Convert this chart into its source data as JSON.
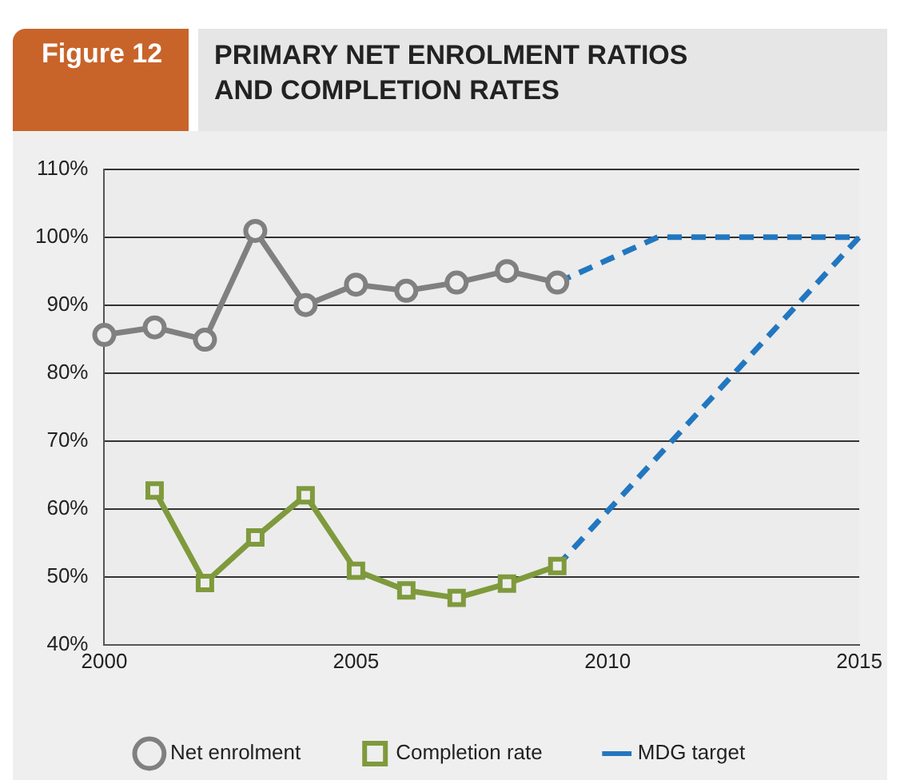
{
  "chart_data": {
    "type": "line",
    "subtitle": "Figure 12",
    "title": "PRIMARY NET ENROLMENT RATIOS AND COMPLETION RATES",
    "xlim": [
      2000,
      2015
    ],
    "xticks": [
      2000,
      2005,
      2010,
      2015
    ],
    "ylim": [
      40,
      110
    ],
    "yticks": [
      {
        "value": 40,
        "label": "40%"
      },
      {
        "value": 50,
        "label": "50%"
      },
      {
        "value": 60,
        "label": "60%"
      },
      {
        "value": 70,
        "label": "70%"
      },
      {
        "value": 80,
        "label": "80%"
      },
      {
        "value": 90,
        "label": "90%"
      },
      {
        "value": 100,
        "label": "100%"
      },
      {
        "value": 110,
        "label": "110%"
      }
    ],
    "grid": "y",
    "legend": "bottom",
    "series": [
      {
        "name": "Net enrolment",
        "color": "#808080",
        "marker": "circle",
        "x": [
          2000,
          2001,
          2002,
          2003,
          2004,
          2005,
          2006,
          2007,
          2008,
          2009
        ],
        "values": [
          85.6,
          86.7,
          84.9,
          100.9,
          90,
          93,
          92.1,
          93.3,
          95,
          93.3
        ]
      },
      {
        "name": "Completion rate",
        "color": "#7f9a3c",
        "marker": "square",
        "x": [
          2001,
          2002,
          2003,
          2004,
          2005,
          2006,
          2007,
          2008,
          2009
        ],
        "values": [
          62.7,
          49.1,
          55.8,
          62,
          50.9,
          48,
          46.9,
          49,
          51.6
        ]
      },
      {
        "name": "MDG target",
        "color": "#2277c0",
        "marker": "none",
        "line_style": "dashed",
        "x": [
          2009,
          2011,
          2015
        ],
        "values": [
          93.3,
          100,
          100
        ]
      },
      {
        "color": "#2277c0",
        "marker": "none",
        "line_style": "dashed",
        "x": [
          2009,
          2015
        ],
        "values": [
          51.6,
          100
        ]
      }
    ]
  }
}
